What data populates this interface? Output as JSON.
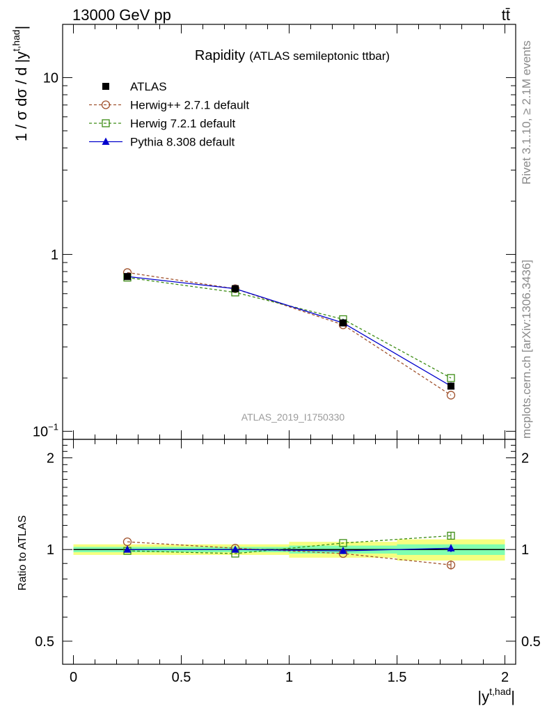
{
  "header": {
    "energy": "13000 GeV pp",
    "process": "tt̄"
  },
  "side": {
    "rivet": "Rivet 3.1.10, ≥ 2.1M events",
    "site": "mcplots.cern.ch [arXiv:1306.3436]"
  },
  "watermark": "ATLAS_2019_I1750330",
  "colors": {
    "atlas": "#000000",
    "herwigpp": "#a0522d",
    "herwig7": "#3c8c14",
    "pythia": "#0000cc",
    "band_inner": "#80ffb0",
    "band_outer": "#f5ff80"
  },
  "chart_data": [
    {
      "type": "line",
      "title": "Rapidity",
      "subtitle": "(ATLAS semileptonic ttbar)",
      "ylabel_parts": {
        "pre": "1 / σ dσ / d |y",
        "sup": "t,had",
        "post": "|"
      },
      "yscale": "log",
      "ylim": [
        0.09,
        20
      ],
      "xlim": [
        -0.05,
        2.05
      ],
      "y_ticks": [
        {
          "v": 10,
          "base": "10",
          "exp": ""
        },
        {
          "v": 1,
          "base": "1",
          "exp": ""
        },
        {
          "v": 0.1,
          "base": "10",
          "exp": "−1"
        }
      ],
      "x": [
        0.25,
        0.75,
        1.25,
        1.75
      ],
      "series": [
        {
          "name": "ATLAS",
          "values": [
            0.75,
            0.64,
            0.41,
            0.18
          ],
          "errors": [
            0.01,
            0.008,
            0.006,
            0.004
          ],
          "style": "data"
        },
        {
          "name": "Herwig++ 2.7.1 default",
          "values": [
            0.79,
            0.64,
            0.4,
            0.16
          ],
          "style": "herwigpp"
        },
        {
          "name": "Herwig 7.2.1 default",
          "values": [
            0.74,
            0.61,
            0.43,
            0.2
          ],
          "style": "herwig7"
        },
        {
          "name": "Pythia 8.308 default",
          "values": [
            0.75,
            0.64,
            0.41,
            0.18
          ],
          "style": "pythia"
        }
      ],
      "legend": "top-left"
    },
    {
      "type": "line",
      "ylabel": "Ratio to ATLAS",
      "yscale": "log",
      "ylim": [
        0.42,
        2.3
      ],
      "xlabel_parts": {
        "pre": "|y",
        "sup": "t,had",
        "post": "|"
      },
      "x_ticks": [
        "0",
        "0.5",
        "1",
        "1.5",
        "2"
      ],
      "x_tick_values": [
        0,
        0.5,
        1,
        1.5,
        2
      ],
      "y_ticks": [
        "2",
        "1",
        "0.5"
      ],
      "y_tick_values": [
        2,
        1,
        0.5
      ],
      "x": [
        0.25,
        0.75,
        1.25,
        1.75
      ],
      "bins": [
        [
          0,
          0.5
        ],
        [
          0.5,
          1
        ],
        [
          1,
          1.5
        ],
        [
          1.5,
          2
        ]
      ],
      "band_inner": [
        0.02,
        0.02,
        0.03,
        0.04
      ],
      "band_outer": [
        0.04,
        0.04,
        0.06,
        0.08
      ],
      "series": [
        {
          "name": "Herwig++ 2.7.1 default",
          "values": [
            1.06,
            1.01,
            0.97,
            0.89
          ],
          "errors": [
            0,
            0,
            0,
            0.03
          ],
          "style": "herwigpp"
        },
        {
          "name": "Herwig 7.2.1 default",
          "values": [
            0.99,
            0.97,
            1.05,
            1.11
          ],
          "errors": [
            0,
            0,
            0,
            0.03
          ],
          "style": "herwig7"
        },
        {
          "name": "Pythia 8.308 default",
          "values": [
            1.0,
            1.0,
            0.99,
            1.01
          ],
          "errors": [
            0,
            0,
            0.02,
            0.03
          ],
          "style": "pythia"
        }
      ]
    }
  ]
}
